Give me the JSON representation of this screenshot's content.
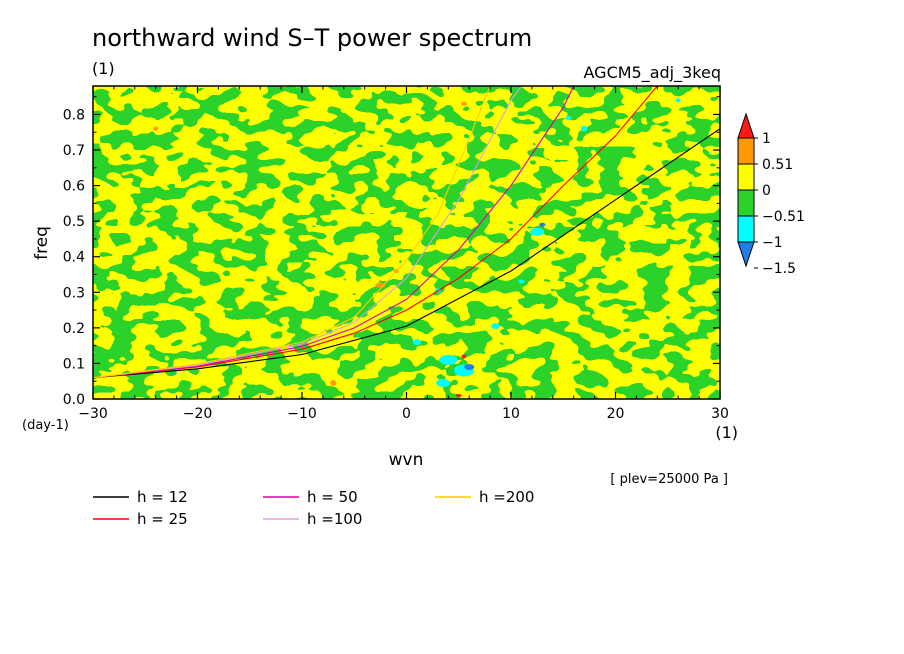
{
  "chart_data": {
    "type": "heatmap",
    "title": "northward wind S–T power spectrum",
    "subtitle_left": "(1)",
    "subtitle_right": "AGCM5_adj_3keq",
    "xlabel": "wvn",
    "xunit": "(1)",
    "ylabel": "freq",
    "yunit": "(day-1)",
    "xlim": [
      -30,
      30
    ],
    "ylim": [
      0,
      0.88
    ],
    "x_ticks": [
      -30,
      -20,
      -10,
      0,
      10,
      20,
      30
    ],
    "x_tick_labels": [
      "−30",
      "−20",
      "−10",
      "0",
      "10",
      "20",
      "30"
    ],
    "y_ticks": [
      0,
      0.1,
      0.2,
      0.3,
      0.4,
      0.5,
      0.6,
      0.7,
      0.8
    ],
    "y_tick_labels": [
      "0.0",
      "0.1",
      "0.2",
      "0.3",
      "0.4",
      "0.5",
      "0.6",
      "0.7",
      "0.8"
    ],
    "annotation": "[ plev=25000 Pa ]",
    "colorbar": {
      "levels": [
        -1.5,
        -1,
        -0.51,
        0,
        0.51,
        1
      ],
      "labels": [
        "1",
        "0.51",
        "0",
        "−0.51",
        "−1",
        "−1.5"
      ],
      "colors": [
        "#1e7fe6",
        "#00ffff",
        "#2ad22a",
        "#ffff00",
        "#ff9900",
        "#ff1a1a"
      ]
    },
    "series": [
      {
        "name": "h = 12",
        "h": 12,
        "color": "#000000",
        "points": [
          [
            -30,
            0.06
          ],
          [
            -20,
            0.085
          ],
          [
            -10,
            0.125
          ],
          [
            0,
            0.205
          ],
          [
            10,
            0.36
          ],
          [
            20,
            0.56
          ],
          [
            30,
            0.76
          ]
        ]
      },
      {
        "name": "h = 25",
        "h": 25,
        "color": "#ff0000",
        "points": [
          [
            -30,
            0.06
          ],
          [
            -20,
            0.09
          ],
          [
            -10,
            0.14
          ],
          [
            -5,
            0.185
          ],
          [
            0,
            0.25
          ],
          [
            5,
            0.34
          ],
          [
            10,
            0.45
          ],
          [
            15,
            0.6
          ],
          [
            20,
            0.74
          ],
          [
            24,
            0.88
          ]
        ]
      },
      {
        "name": "h = 50",
        "h": 50,
        "color": "#dd00aa",
        "points": [
          [
            -30,
            0.06
          ],
          [
            -20,
            0.092
          ],
          [
            -10,
            0.148
          ],
          [
            -5,
            0.2
          ],
          [
            0,
            0.28
          ],
          [
            5,
            0.42
          ],
          [
            10,
            0.6
          ],
          [
            15,
            0.82
          ],
          [
            16,
            0.88
          ]
        ]
      },
      {
        "name": "h =100",
        "h": 100,
        "color": "#e0a0d8",
        "points": [
          [
            -30,
            0.06
          ],
          [
            -20,
            0.095
          ],
          [
            -10,
            0.155
          ],
          [
            -5,
            0.215
          ],
          [
            0,
            0.34
          ],
          [
            5,
            0.56
          ],
          [
            10,
            0.84
          ],
          [
            11,
            0.88
          ]
        ]
      },
      {
        "name": "h =200",
        "h": 200,
        "color": "#ffcc00",
        "points": [
          [
            -30,
            0.06
          ],
          [
            -20,
            0.098
          ],
          [
            -10,
            0.16
          ],
          [
            -5,
            0.23
          ],
          [
            0,
            0.39
          ],
          [
            3,
            0.52
          ],
          [
            5,
            0.66
          ],
          [
            8,
            0.88
          ]
        ]
      }
    ]
  }
}
